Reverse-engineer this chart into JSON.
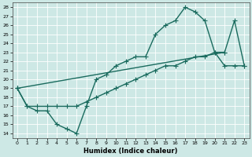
{
  "xlabel": "Humidex (Indice chaleur)",
  "bg_color": "#cde8e5",
  "grid_color": "#ffffff",
  "line_color": "#1a6b5e",
  "xlim": [
    -0.5,
    23.5
  ],
  "ylim": [
    13.5,
    28.5
  ],
  "xticks": [
    0,
    1,
    2,
    3,
    4,
    5,
    6,
    7,
    8,
    9,
    10,
    11,
    12,
    13,
    14,
    15,
    16,
    17,
    18,
    19,
    20,
    21,
    22,
    23
  ],
  "yticks": [
    14,
    15,
    16,
    17,
    18,
    19,
    20,
    21,
    22,
    23,
    24,
    25,
    26,
    27,
    28
  ],
  "series1_x": [
    0,
    1,
    2,
    3,
    4,
    5,
    6,
    7,
    8,
    9,
    10,
    11,
    12,
    13,
    14,
    15,
    16,
    17,
    18,
    19,
    20,
    21
  ],
  "series1_y": [
    19.0,
    17.0,
    16.5,
    16.5,
    15.0,
    14.5,
    14.0,
    17.0,
    20.0,
    20.5,
    21.5,
    22.0,
    22.5,
    22.5,
    25.0,
    26.0,
    26.5,
    28.0,
    27.5,
    26.5,
    23.0,
    23.0
  ],
  "series2_x": [
    0,
    1,
    2,
    3,
    4,
    5,
    6,
    7,
    8,
    9,
    10,
    11,
    12,
    13,
    14,
    15,
    16,
    17,
    18,
    19,
    20,
    21,
    22,
    23
  ],
  "series2_y": [
    19.0,
    17.0,
    17.0,
    17.0,
    17.0,
    17.0,
    17.0,
    17.5,
    18.0,
    18.5,
    19.0,
    19.5,
    20.0,
    20.5,
    21.0,
    21.5,
    21.5,
    22.0,
    22.5,
    22.5,
    23.0,
    21.5,
    21.5,
    21.5
  ],
  "series3_x": [
    0,
    21,
    22,
    23
  ],
  "series3_y": [
    19.0,
    23.0,
    26.5,
    21.5
  ],
  "marker": "+",
  "markersize": 4,
  "linewidth": 1.0
}
